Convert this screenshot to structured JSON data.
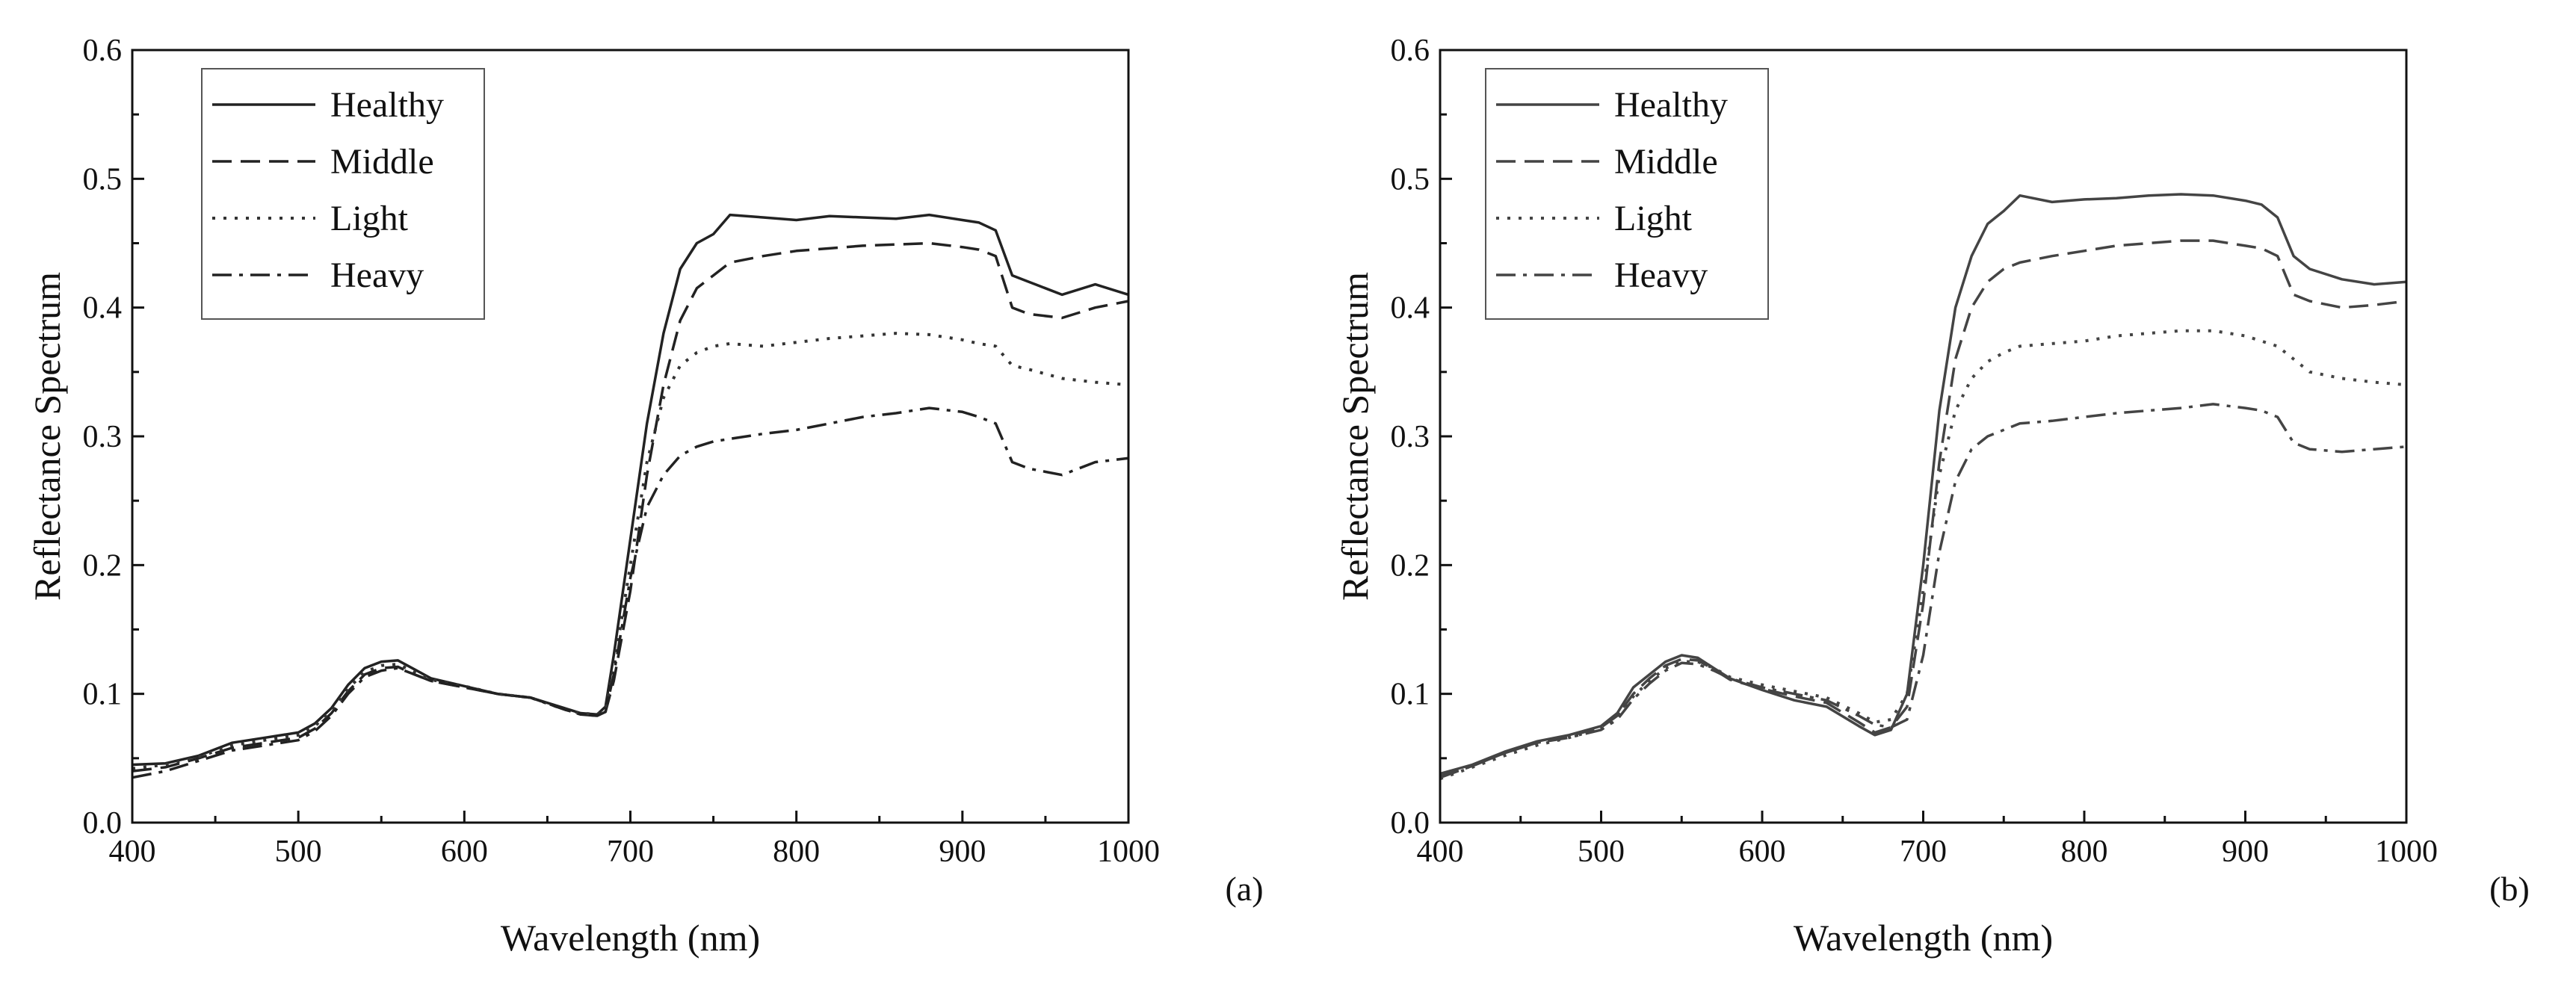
{
  "chart_data": [
    {
      "type": "line",
      "panel_label": "(a)",
      "xlabel": "Wavelength (nm)",
      "ylabel": "Reflectance Spectrum",
      "xlim": [
        400,
        1000
      ],
      "ylim": [
        0.0,
        0.6
      ],
      "xticks": [
        "400",
        "500",
        "600",
        "700",
        "800",
        "900",
        "1000"
      ],
      "yticks": [
        "0.0",
        "0.1",
        "0.2",
        "0.3",
        "0.4",
        "0.5",
        "0.6"
      ],
      "legend_position": "top-left",
      "x": [
        400,
        420,
        440,
        460,
        480,
        500,
        510,
        520,
        530,
        540,
        550,
        560,
        570,
        580,
        600,
        620,
        640,
        660,
        670,
        680,
        685,
        690,
        700,
        710,
        720,
        730,
        740,
        750,
        760,
        780,
        800,
        820,
        840,
        860,
        880,
        900,
        910,
        920,
        930,
        940,
        960,
        980,
        1000
      ],
      "series": [
        {
          "name": "Healthy",
          "style": "solid",
          "color": "#222222",
          "values": [
            0.045,
            0.046,
            0.052,
            0.062,
            0.066,
            0.07,
            0.077,
            0.089,
            0.107,
            0.12,
            0.125,
            0.126,
            0.119,
            0.112,
            0.106,
            0.1,
            0.097,
            0.089,
            0.085,
            0.084,
            0.09,
            0.13,
            0.22,
            0.31,
            0.38,
            0.43,
            0.45,
            0.457,
            0.472,
            0.47,
            0.468,
            0.471,
            0.47,
            0.469,
            0.472,
            0.468,
            0.466,
            0.46,
            0.425,
            0.42,
            0.41,
            0.418,
            0.41
          ]
        },
        {
          "name": "Middle",
          "style": "dashed",
          "color": "#222222",
          "values": [
            0.04,
            0.043,
            0.05,
            0.058,
            0.062,
            0.066,
            0.073,
            0.085,
            0.102,
            0.115,
            0.12,
            0.121,
            0.115,
            0.11,
            0.105,
            0.1,
            0.097,
            0.088,
            0.084,
            0.083,
            0.086,
            0.11,
            0.18,
            0.27,
            0.34,
            0.39,
            0.415,
            0.425,
            0.435,
            0.44,
            0.444,
            0.446,
            0.448,
            0.449,
            0.45,
            0.447,
            0.445,
            0.44,
            0.4,
            0.395,
            0.392,
            0.4,
            0.405
          ]
        },
        {
          "name": "Light",
          "style": "dotted",
          "color": "#333333",
          "values": [
            0.042,
            0.045,
            0.051,
            0.06,
            0.064,
            0.068,
            0.075,
            0.087,
            0.104,
            0.117,
            0.122,
            0.123,
            0.117,
            0.111,
            0.106,
            0.1,
            0.097,
            0.088,
            0.085,
            0.084,
            0.088,
            0.12,
            0.2,
            0.28,
            0.33,
            0.355,
            0.365,
            0.37,
            0.372,
            0.37,
            0.373,
            0.376,
            0.378,
            0.38,
            0.379,
            0.375,
            0.372,
            0.37,
            0.355,
            0.352,
            0.345,
            0.342,
            0.34
          ]
        },
        {
          "name": "Heavy",
          "style": "dashdot",
          "color": "#222222",
          "values": [
            0.035,
            0.04,
            0.048,
            0.056,
            0.06,
            0.064,
            0.071,
            0.083,
            0.1,
            0.113,
            0.118,
            0.12,
            0.115,
            0.11,
            0.105,
            0.1,
            0.097,
            0.088,
            0.084,
            0.083,
            0.086,
            0.115,
            0.19,
            0.245,
            0.27,
            0.285,
            0.292,
            0.296,
            0.298,
            0.302,
            0.305,
            0.31,
            0.315,
            0.318,
            0.322,
            0.319,
            0.315,
            0.31,
            0.28,
            0.275,
            0.27,
            0.28,
            0.283
          ]
        }
      ]
    },
    {
      "type": "line",
      "panel_label": "(b)",
      "xlabel": "Wavelength (nm)",
      "ylabel": "Reflectance Spectrum",
      "xlim": [
        400,
        1000
      ],
      "ylim": [
        0.0,
        0.6
      ],
      "xticks": [
        "400",
        "500",
        "600",
        "700",
        "800",
        "900",
        "1000"
      ],
      "yticks": [
        "0.0",
        "0.1",
        "0.2",
        "0.3",
        "0.4",
        "0.5",
        "0.6"
      ],
      "legend_position": "top-left",
      "x": [
        400,
        420,
        440,
        460,
        480,
        500,
        510,
        520,
        530,
        540,
        550,
        560,
        570,
        580,
        600,
        620,
        640,
        660,
        670,
        680,
        690,
        700,
        710,
        720,
        730,
        740,
        750,
        760,
        780,
        800,
        820,
        840,
        860,
        880,
        900,
        910,
        920,
        930,
        940,
        960,
        980,
        1000
      ],
      "series": [
        {
          "name": "Healthy",
          "style": "solid",
          "color": "#444444",
          "values": [
            0.038,
            0.045,
            0.055,
            0.063,
            0.068,
            0.075,
            0.085,
            0.105,
            0.115,
            0.125,
            0.13,
            0.128,
            0.12,
            0.112,
            0.103,
            0.095,
            0.09,
            0.075,
            0.068,
            0.072,
            0.1,
            0.2,
            0.32,
            0.4,
            0.44,
            0.465,
            0.475,
            0.487,
            0.482,
            0.484,
            0.485,
            0.487,
            0.488,
            0.487,
            0.483,
            0.48,
            0.47,
            0.44,
            0.43,
            0.422,
            0.418,
            0.42
          ]
        },
        {
          "name": "Middle",
          "style": "dashed",
          "color": "#444444",
          "values": [
            0.036,
            0.044,
            0.054,
            0.062,
            0.067,
            0.074,
            0.083,
            0.1,
            0.112,
            0.122,
            0.127,
            0.126,
            0.119,
            0.111,
            0.104,
            0.098,
            0.093,
            0.078,
            0.07,
            0.074,
            0.09,
            0.17,
            0.28,
            0.36,
            0.4,
            0.42,
            0.43,
            0.435,
            0.44,
            0.444,
            0.448,
            0.45,
            0.452,
            0.452,
            0.448,
            0.446,
            0.44,
            0.41,
            0.405,
            0.4,
            0.402,
            0.405
          ]
        },
        {
          "name": "Light",
          "style": "dotted",
          "color": "#444444",
          "values": [
            0.034,
            0.043,
            0.052,
            0.06,
            0.066,
            0.073,
            0.082,
            0.098,
            0.11,
            0.12,
            0.125,
            0.125,
            0.12,
            0.113,
            0.107,
            0.102,
            0.097,
            0.085,
            0.078,
            0.08,
            0.1,
            0.18,
            0.27,
            0.32,
            0.345,
            0.358,
            0.365,
            0.37,
            0.372,
            0.374,
            0.378,
            0.38,
            0.382,
            0.382,
            0.378,
            0.374,
            0.37,
            0.36,
            0.35,
            0.345,
            0.342,
            0.34
          ]
        },
        {
          "name": "Heavy",
          "style": "dashdot",
          "color": "#444444",
          "values": [
            0.035,
            0.044,
            0.054,
            0.062,
            0.066,
            0.072,
            0.08,
            0.096,
            0.108,
            0.118,
            0.124,
            0.123,
            0.118,
            0.112,
            0.105,
            0.1,
            0.095,
            0.083,
            0.076,
            0.074,
            0.08,
            0.13,
            0.21,
            0.265,
            0.29,
            0.3,
            0.305,
            0.31,
            0.312,
            0.315,
            0.318,
            0.32,
            0.322,
            0.325,
            0.322,
            0.32,
            0.315,
            0.295,
            0.29,
            0.288,
            0.29,
            0.292
          ]
        }
      ]
    }
  ]
}
